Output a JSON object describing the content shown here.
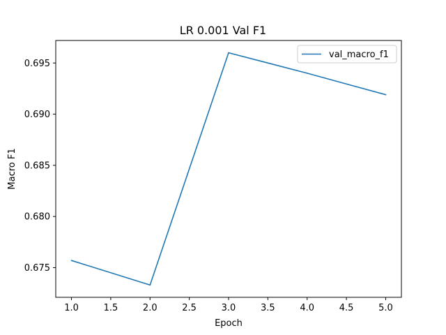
{
  "chart_data": {
    "type": "line",
    "title": "LR 0.001 Val F1",
    "xlabel": "Epoch",
    "ylabel": "Macro F1",
    "xlim": [
      0.8,
      5.2
    ],
    "ylim": [
      0.6721,
      0.6972
    ],
    "x_ticks": [
      "1.0",
      "1.5",
      "2.0",
      "2.5",
      "3.0",
      "3.5",
      "4.0",
      "4.5",
      "5.0"
    ],
    "y_ticks": [
      "0.675",
      "0.680",
      "0.685",
      "0.690",
      "0.695"
    ],
    "grid": false,
    "legend_position": "top-right",
    "series": [
      {
        "name": "val_macro_f1",
        "color": "#1f77b4",
        "x": [
          1.0,
          2.0,
          3.0,
          4.0,
          5.0
        ],
        "y": [
          0.6757,
          0.6733,
          0.696,
          0.694,
          0.6919
        ]
      }
    ]
  }
}
